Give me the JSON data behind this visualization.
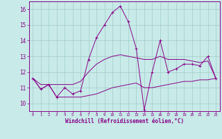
{
  "xlabel": "Windchill (Refroidissement éolien,°C)",
  "background_color": "#c8eae8",
  "grid_color": "#a0ccc8",
  "line_color": "#880088",
  "x_hours": [
    0,
    1,
    2,
    3,
    4,
    5,
    6,
    7,
    8,
    9,
    10,
    11,
    12,
    13,
    14,
    15,
    16,
    17,
    18,
    19,
    20,
    21,
    22,
    23
  ],
  "y_actual": [
    11.6,
    10.9,
    11.2,
    10.4,
    11.0,
    10.6,
    10.8,
    12.8,
    14.2,
    15.0,
    15.8,
    16.2,
    15.2,
    13.5,
    9.6,
    12.0,
    14.0,
    12.0,
    12.2,
    12.5,
    12.5,
    12.4,
    13.0,
    11.6
  ],
  "y_min": [
    11.6,
    10.9,
    11.2,
    10.4,
    10.4,
    10.4,
    10.4,
    10.5,
    10.6,
    10.8,
    11.0,
    11.1,
    11.2,
    11.3,
    11.0,
    11.0,
    11.1,
    11.2,
    11.3,
    11.4,
    11.4,
    11.5,
    11.5,
    11.6
  ],
  "y_max": [
    11.6,
    11.2,
    11.2,
    11.2,
    11.2,
    11.2,
    11.4,
    12.0,
    12.5,
    12.8,
    13.0,
    13.1,
    13.0,
    12.9,
    12.8,
    12.8,
    13.0,
    12.8,
    12.8,
    12.8,
    12.7,
    12.6,
    12.7,
    11.6
  ],
  "ylim": [
    9.5,
    16.5
  ],
  "yticks": [
    10,
    11,
    12,
    13,
    14,
    15,
    16
  ],
  "xlim": [
    -0.5,
    23.5
  ],
  "xtick_fontsize": 4.0,
  "ytick_fontsize": 5.5,
  "xlabel_fontsize": 5.5
}
